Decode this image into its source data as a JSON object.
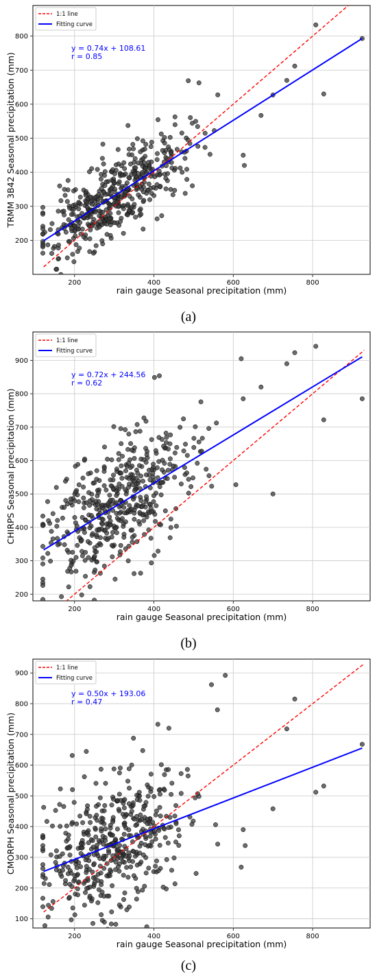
{
  "chart_data": [
    {
      "type": "scatter",
      "panel_label": "(a)",
      "xlabel": "rain gauge Seasonal precipitation (mm)",
      "ylabel": "TRMM 3B42 Seasonal precipitation (mm)",
      "xlim": [
        95,
        945
      ],
      "ylim": [
        100,
        890
      ],
      "x_ticks": [
        200,
        400,
        600,
        800
      ],
      "y_ticks": [
        200,
        300,
        400,
        500,
        600,
        700,
        800
      ],
      "grid": true,
      "legend": {
        "placement": "top-left",
        "entries": [
          "1:1 line",
          "Fitting curve"
        ]
      },
      "fit": {
        "slope": 0.74,
        "intercept": 108.61,
        "equation": "y = 0.74x + 108.61",
        "r_text": "r = 0.85"
      },
      "one_to_one_range": [
        122,
        930
      ],
      "fit_range": [
        122,
        925
      ],
      "points": {
        "n": 480,
        "center_x": 300,
        "spread_x": 90,
        "x_min": 120,
        "x_max": 930,
        "resid_sd": 58,
        "seed": 11,
        "extra": [
          [
            925,
            793
          ],
          [
            808,
            833
          ],
          [
            828,
            630
          ],
          [
            755,
            712
          ],
          [
            735,
            670
          ],
          [
            700,
            627
          ],
          [
            628,
            420
          ],
          [
            625,
            450
          ],
          [
            670,
            567
          ]
        ]
      }
    },
    {
      "type": "scatter",
      "panel_label": "(b)",
      "xlabel": "rain gauge Seasonal precipitation (mm)",
      "ylabel": "CHIRPS Seasonal precipitation (mm)",
      "xlim": [
        95,
        945
      ],
      "ylim": [
        180,
        985
      ],
      "x_ticks": [
        200,
        400,
        600,
        800
      ],
      "y_ticks": [
        200,
        300,
        400,
        500,
        600,
        700,
        800,
        900
      ],
      "grid": true,
      "legend": {
        "placement": "top-left",
        "entries": [
          "1:1 line",
          "Fitting curve"
        ]
      },
      "fit": {
        "slope": 0.72,
        "intercept": 244.56,
        "equation": "y = 0.72x + 244.56",
        "r_text": "r = 0.62"
      },
      "one_to_one_range": [
        178,
        930
      ],
      "fit_range": [
        122,
        925
      ],
      "points": {
        "n": 480,
        "center_x": 300,
        "spread_x": 90,
        "x_min": 120,
        "x_max": 930,
        "resid_sd": 95,
        "seed": 23,
        "extra": [
          [
            925,
            785
          ],
          [
            808,
            942
          ],
          [
            755,
            923
          ],
          [
            735,
            890
          ],
          [
            828,
            722
          ],
          [
            700,
            500
          ],
          [
            620,
            905
          ],
          [
            625,
            785
          ],
          [
            670,
            820
          ],
          [
            215,
            935
          ]
        ]
      }
    },
    {
      "type": "scatter",
      "panel_label": "(c)",
      "xlabel": "rain gauge Seasonal precipitation (mm)",
      "ylabel": "CMORPH Seasonal precipitation (mm)",
      "xlim": [
        95,
        945
      ],
      "ylim": [
        70,
        945
      ],
      "x_ticks": [
        200,
        400,
        600,
        800
      ],
      "y_ticks": [
        100,
        200,
        300,
        400,
        500,
        600,
        700,
        800,
        900
      ],
      "grid": true,
      "legend": {
        "placement": "top-left",
        "entries": [
          "1:1 line",
          "Fitting curve"
        ]
      },
      "fit": {
        "slope": 0.5,
        "intercept": 193.06,
        "equation": "y = 0.50x + 193.06",
        "r_text": "r = 0.47"
      },
      "one_to_one_range": [
        122,
        930
      ],
      "fit_range": [
        122,
        925
      ],
      "points": {
        "n": 480,
        "center_x": 300,
        "spread_x": 90,
        "x_min": 120,
        "x_max": 930,
        "resid_sd": 110,
        "seed": 37,
        "extra": [
          [
            925,
            668
          ],
          [
            808,
            512
          ],
          [
            828,
            532
          ],
          [
            755,
            815
          ],
          [
            735,
            718
          ],
          [
            700,
            458
          ],
          [
            580,
            892
          ],
          [
            545,
            862
          ],
          [
            560,
            780
          ],
          [
            410,
            733
          ],
          [
            625,
            390
          ],
          [
            620,
            268
          ],
          [
            630,
            338
          ]
        ]
      }
    }
  ],
  "colors": {
    "one_to_one": "#ff0000",
    "fit": "#0000ff",
    "point_fill": "#3a3a3a",
    "point_stroke": "#000000",
    "grid": "#c8c8c8",
    "equation_text": "#0000ff"
  }
}
